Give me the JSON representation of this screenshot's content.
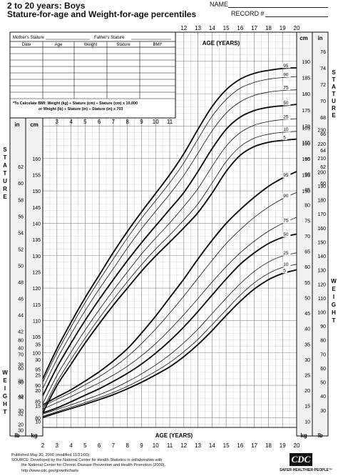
{
  "header": {
    "title_line1": "2 to 20 years: Boys",
    "title_line2": "Stature-for-age and Weight-for-age percentiles",
    "name_label": "NAME",
    "record_label": "RECORD #"
  },
  "measurement_table": {
    "mothers_stature": "Mother's Stature",
    "fathers_stature": "Father's Stature",
    "columns": [
      "Date",
      "Age",
      "Weight",
      "Stature",
      "BMI*"
    ],
    "row_count": 8,
    "bmi_note_line1": "*To Calculate BMI: Weight (kg) ÷ Stature (cm) ÷ Stature (cm) x 10,000",
    "bmi_note_line2": "or Weight (lb) ÷ Stature (in) ÷ Stature (in) x 703"
  },
  "axis_labels": {
    "age_years_top": "AGE (YEARS)",
    "age_years_bottom": "AGE (YEARS)",
    "in": "in",
    "cm": "cm",
    "kg": "kg",
    "lb": "lb",
    "stature_vertical": "STATURE",
    "weight_vertical": "WEIGHT"
  },
  "footer": {
    "published": "Published May 30, 2000 (modified 11/21/00).",
    "source_line1": "SOURCE: Developed by the National Center for Health Statistics in collaboration with",
    "source_line2": "the National Center for Chronic Disease Prevention and Health Promotion (2000).",
    "url": "http://www.cdc.gov/growthcharts",
    "logo_text": "CDC",
    "logo_tagline": "SAFER·HEALTHIER·PEOPLE™"
  },
  "chart_data": [
    {
      "type": "line",
      "title": "Stature-for-age percentiles",
      "xlabel": "AGE (YEARS)",
      "ylabel": "cm",
      "xlim": [
        2,
        20
      ],
      "ylim": [
        77,
        199
      ],
      "x_ticks": [
        2,
        3,
        4,
        5,
        6,
        7,
        8,
        9,
        10,
        11,
        12,
        13,
        14,
        15,
        16,
        17,
        18,
        19,
        20
      ],
      "left_cm_ticks": [
        80,
        85,
        90,
        95,
        100,
        105,
        110,
        115,
        120,
        125,
        130,
        135,
        140,
        145,
        150,
        155,
        160
      ],
      "left_in_ticks": [
        30,
        32,
        34,
        36,
        38,
        40,
        42,
        44,
        46,
        48,
        50,
        52,
        54,
        56,
        58,
        60,
        62
      ],
      "right_cm_ticks": [
        150,
        155,
        160,
        165,
        170,
        175,
        180,
        185,
        190
      ],
      "right_in_ticks": [
        60,
        62,
        64,
        66,
        68,
        70,
        72,
        74,
        76
      ],
      "x": [
        2,
        3,
        4,
        5,
        6,
        7,
        8,
        9,
        10,
        11,
        12,
        13,
        14,
        15,
        16,
        17,
        18,
        19,
        20
      ],
      "series": [
        {
          "name": "95",
          "values": [
            92.0,
            101.3,
            109.4,
            117.0,
            124.0,
            131.0,
            137.5,
            143.5,
            149.2,
            155.0,
            161.5,
            169.0,
            176.0,
            181.2,
            184.5,
            186.3,
            187.2,
            187.8,
            188.0
          ]
        },
        {
          "name": "90",
          "values": [
            91.0,
            100.0,
            108.0,
            115.5,
            122.4,
            129.0,
            135.5,
            141.5,
            147.0,
            152.5,
            158.7,
            166.0,
            173.0,
            178.2,
            181.7,
            183.5,
            184.5,
            185.0,
            185.3
          ]
        },
        {
          "name": "75",
          "values": [
            89.0,
            98.0,
            105.8,
            113.0,
            119.7,
            126.0,
            132.4,
            138.3,
            143.7,
            149.0,
            154.8,
            161.6,
            168.5,
            174.0,
            177.5,
            179.5,
            180.5,
            181.0,
            181.2
          ]
        },
        {
          "name": "50",
          "values": [
            86.8,
            95.5,
            103.0,
            110.0,
            116.5,
            122.6,
            128.5,
            134.0,
            139.2,
            144.3,
            149.5,
            156.0,
            163.0,
            169.0,
            172.8,
            174.8,
            175.8,
            176.3,
            176.7
          ]
        },
        {
          "name": "25",
          "values": [
            84.3,
            93.0,
            100.2,
            107.0,
            113.3,
            119.3,
            125.0,
            130.5,
            135.4,
            140.1,
            145.2,
            150.7,
            157.5,
            163.8,
            168.0,
            170.3,
            171.4,
            172.0,
            172.3
          ]
        },
        {
          "name": "10",
          "values": [
            82.5,
            91.0,
            98.0,
            104.5,
            110.7,
            116.5,
            122.0,
            127.2,
            132.0,
            136.4,
            141.0,
            146.0,
            152.4,
            159.0,
            163.7,
            166.3,
            167.5,
            168.1,
            168.4
          ]
        },
        {
          "name": "5",
          "values": [
            81.5,
            89.9,
            96.5,
            103.0,
            109.0,
            114.7,
            120.0,
            125.2,
            129.9,
            134.2,
            138.6,
            143.3,
            149.3,
            156.0,
            161.0,
            163.7,
            165.0,
            165.6,
            166.0
          ]
        }
      ]
    },
    {
      "type": "line",
      "title": "Weight-for-age percentiles",
      "xlabel": "AGE (YEARS)",
      "ylabel": "kg",
      "xlim": [
        2,
        20
      ],
      "ylim": [
        8,
        107
      ],
      "left_kg_ticks": [
        10,
        15,
        20,
        25,
        30,
        35
      ],
      "left_lb_ticks": [
        20,
        30,
        40,
        50,
        60,
        70,
        80
      ],
      "right_kg_ticks": [
        10,
        15,
        20,
        25,
        30,
        35,
        40,
        45,
        50,
        55,
        60,
        65,
        70,
        75,
        80,
        85,
        90,
        95,
        100,
        105
      ],
      "right_lb_ticks": [
        30,
        40,
        50,
        60,
        70,
        80,
        90,
        100,
        110,
        120,
        130,
        140,
        150,
        160,
        170,
        180,
        190,
        200,
        210,
        220,
        230
      ],
      "x": [
        2,
        3,
        4,
        5,
        6,
        7,
        8,
        9,
        10,
        11,
        12,
        13,
        14,
        15,
        16,
        17,
        18,
        19,
        20
      ],
      "series": [
        {
          "name": "95",
          "values": [
            15.3,
            17.8,
            20.2,
            23.0,
            26.0,
            29.5,
            33.5,
            38.5,
            44.0,
            50.0,
            56.0,
            62.5,
            68.5,
            74.0,
            78.5,
            82.5,
            86.0,
            88.7,
            90.8
          ]
        },
        {
          "name": "90",
          "values": [
            14.8,
            17.1,
            19.3,
            21.8,
            24.4,
            27.4,
            30.9,
            35.1,
            39.8,
            45.0,
            50.5,
            56.3,
            62.0,
            67.5,
            72.0,
            76.0,
            79.3,
            82.0,
            84.0
          ]
        },
        {
          "name": "75",
          "values": [
            13.9,
            16.0,
            18.0,
            20.2,
            22.4,
            24.9,
            27.8,
            31.2,
            35.1,
            39.6,
            44.5,
            49.7,
            55.0,
            60.0,
            64.5,
            68.3,
            71.5,
            74.0,
            76.0
          ]
        },
        {
          "name": "50",
          "values": [
            12.7,
            14.3,
            16.3,
            18.4,
            20.5,
            22.9,
            25.5,
            28.5,
            32.0,
            36.0,
            40.5,
            45.5,
            50.8,
            56.0,
            60.8,
            64.5,
            67.5,
            69.5,
            70.6
          ]
        },
        {
          "name": "25",
          "values": [
            12.3,
            13.8,
            15.3,
            16.9,
            18.6,
            20.5,
            22.8,
            25.3,
            28.2,
            31.5,
            35.4,
            39.8,
            44.8,
            49.8,
            54.5,
            58.5,
            61.5,
            63.5,
            64.5
          ]
        },
        {
          "name": "10",
          "values": [
            11.6,
            13.1,
            14.6,
            16.0,
            17.6,
            19.3,
            21.3,
            23.6,
            26.1,
            29.0,
            32.5,
            36.5,
            41.2,
            46.0,
            50.8,
            54.8,
            57.8,
            59.8,
            60.8
          ]
        },
        {
          "name": "5",
          "values": [
            11.2,
            12.7,
            14.1,
            15.5,
            17.0,
            18.6,
            20.5,
            22.6,
            25.0,
            27.6,
            30.9,
            34.8,
            39.3,
            44.2,
            48.8,
            52.8,
            55.8,
            57.8,
            59.0
          ]
        }
      ]
    }
  ],
  "colors": {
    "ink": "#111111",
    "grid": "#bdbdbd",
    "paper": "#ffffff",
    "band": "#eeeeee"
  }
}
